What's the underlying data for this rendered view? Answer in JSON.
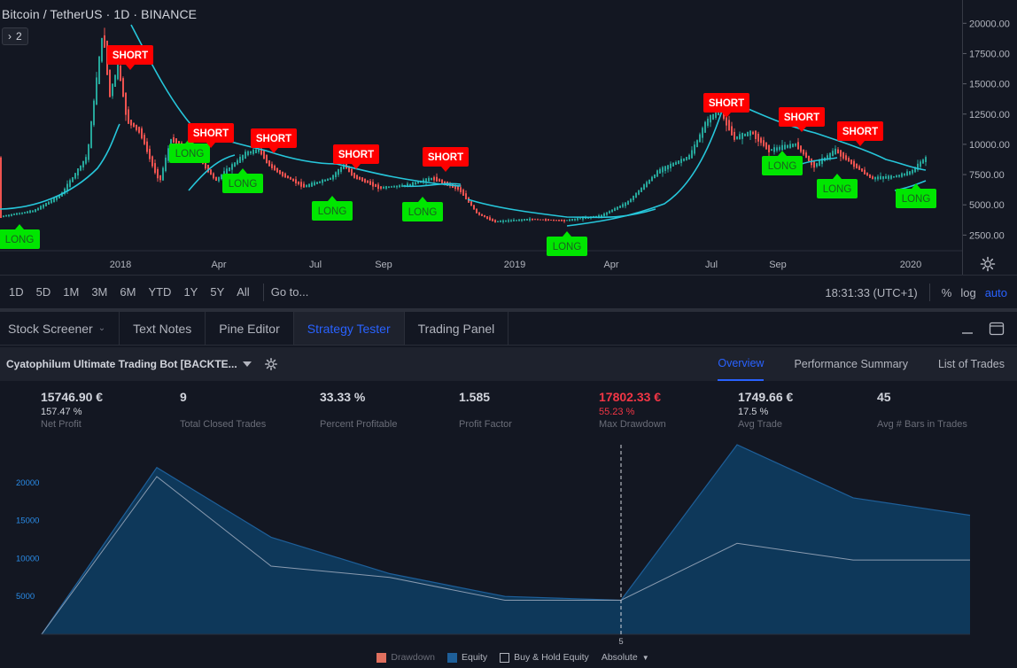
{
  "chart": {
    "title": "Bitcoin / TetherUS · 1D · BINANCE",
    "indicator_count": "2",
    "price_ticks": [
      "20000.00",
      "17500.00",
      "15000.00",
      "12500.00",
      "10000.00",
      "7500.00",
      "5000.00",
      "2500.00"
    ],
    "time_ticks": [
      "2018",
      "Apr",
      "Jul",
      "Sep",
      "2019",
      "Apr",
      "Jul",
      "Sep",
      "2020"
    ],
    "signals": [
      {
        "type": "LONG",
        "label": "LONG"
      },
      {
        "type": "SHORT",
        "label": "SHORT"
      },
      {
        "type": "LONG",
        "label": "LONG"
      },
      {
        "type": "SHORT",
        "label": "SHORT"
      },
      {
        "type": "LONG",
        "label": "LONG"
      },
      {
        "type": "SHORT",
        "label": "SHORT"
      },
      {
        "type": "SHORT",
        "label": "SHORT"
      },
      {
        "type": "LONG",
        "label": "LONG"
      },
      {
        "type": "SHORT",
        "label": "SHORT"
      },
      {
        "type": "LONG",
        "label": "LONG"
      },
      {
        "type": "LONG",
        "label": "LONG"
      },
      {
        "type": "SHORT",
        "label": "SHORT"
      },
      {
        "type": "LONG",
        "label": "LONG"
      },
      {
        "type": "SHORT",
        "label": "SHORT"
      },
      {
        "type": "LONG",
        "label": "LONG"
      },
      {
        "type": "SHORT",
        "label": "SHORT"
      },
      {
        "type": "LONG",
        "label": "LONG"
      }
    ],
    "colors": {
      "up": "#26a69a",
      "down": "#ef5350",
      "ma": "#26c6da",
      "long": "#00e600",
      "short": "#ff0000"
    }
  },
  "range_bar": {
    "ranges": [
      "1D",
      "5D",
      "1M",
      "3M",
      "6M",
      "YTD",
      "1Y",
      "5Y",
      "All"
    ],
    "goto": "Go to...",
    "clock": "18:31:33 (UTC+1)",
    "percent": "%",
    "log": "log",
    "auto": "auto"
  },
  "tabs": [
    {
      "label": "Stock Screener",
      "active": false
    },
    {
      "label": "Text Notes",
      "active": false
    },
    {
      "label": "Pine Editor",
      "active": false
    },
    {
      "label": "Strategy Tester",
      "active": true
    },
    {
      "label": "Trading Panel",
      "active": false
    }
  ],
  "strategy": {
    "name": "Cyatophilum Ultimate Trading Bot [BACKTE...",
    "subtabs": [
      {
        "label": "Overview",
        "active": true
      },
      {
        "label": "Performance Summary",
        "active": false
      },
      {
        "label": "List of Trades",
        "active": false
      }
    ]
  },
  "stats": [
    {
      "value": "15746.90 €",
      "pct": "157.47 %",
      "label": "Net Profit",
      "negative": false
    },
    {
      "value": "9",
      "pct": "",
      "label": "Total Closed Trades",
      "negative": false
    },
    {
      "value": "33.33 %",
      "pct": "",
      "label": "Percent Profitable",
      "negative": false
    },
    {
      "value": "1.585",
      "pct": "",
      "label": "Profit Factor",
      "negative": false
    },
    {
      "value": "17802.33 €",
      "pct": "55.23 %",
      "label": "Max Drawdown",
      "negative": true
    },
    {
      "value": "1749.66 €",
      "pct": "17.5 %",
      "label": "Avg Trade",
      "negative": false
    },
    {
      "value": "45",
      "pct": "",
      "label": "Avg # Bars in Trades",
      "negative": false
    }
  ],
  "equity_chart": {
    "y_ticks": [
      "20000",
      "15000",
      "10000",
      "5000"
    ],
    "x_marker": "5",
    "equity": [
      0,
      22000,
      12800,
      8000,
      5000,
      4500,
      25000,
      18000,
      15700
    ],
    "buy_hold": [
      0,
      20800,
      9000,
      7500,
      4500,
      4500,
      12000,
      9800,
      9800
    ],
    "ymax": 25000
  },
  "legend": {
    "drawdown": "Drawdown",
    "equity": "Equity",
    "buy_hold": "Buy & Hold Equity",
    "mode": "Absolute"
  }
}
